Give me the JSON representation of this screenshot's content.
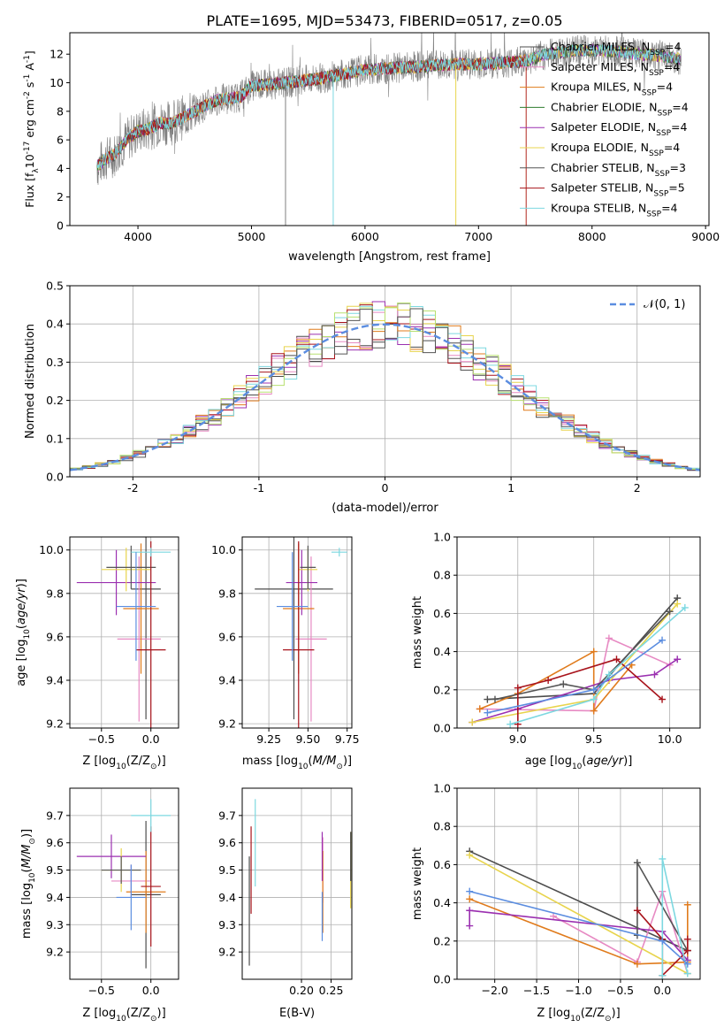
{
  "figure": {
    "title": "PLATE=1695, MJD=53473, FIBERID=0517, z=0.05",
    "colors": {
      "Chabrier MILES": "#4c4c4c",
      "Salpeter MILES": "#e78ac3",
      "Kroupa MILES": "#e07b1c",
      "Chabrier ELODIE": "#2e7d2e",
      "Salpeter ELODIE": "#9b30b0",
      "Kroupa ELODIE": "#e8d44d",
      "Chabrier STELIB": "#555555",
      "Salpeter STELIB": "#a8141c",
      "Kroupa STELIB": "#7dd8e0",
      "data": "#808080",
      "blue": "#5b8de0",
      "lime": "#b8e070",
      "gaussian": "#5b8de0"
    }
  },
  "chart_data": [
    {
      "id": "spectrum",
      "type": "line",
      "title": "PLATE=1695, MJD=53473, FIBERID=0517, z=0.05",
      "xlabel": "wavelength [Angstrom, rest frame]",
      "ylabel_main": "Flux [f",
      "ylabel_tail": "10",
      "ylabel_exp": "-17",
      "ylabel_unit": " erg cm",
      "ylabel_exp2": "-2",
      "ylabel_s": " s",
      "ylabel_exp3": "-1",
      "ylabel_A": " A",
      "ylabel_exp4": "-1",
      "ylabel_end": "]",
      "xlim": [
        3400,
        9030
      ],
      "ylim": [
        0,
        13.5
      ],
      "xticks": [
        4000,
        5000,
        6000,
        7000,
        8000,
        9000
      ],
      "yticks": [
        0,
        2,
        4,
        6,
        8,
        10,
        12
      ],
      "legend_position": "top-right",
      "legend": [
        {
          "label": "Chabrier MILES, N",
          "sub": "SSP",
          "tail": "=4",
          "color": "#4c4c4c"
        },
        {
          "label": "Salpeter MILES, N",
          "sub": "SSP",
          "tail": "=4",
          "color": "#e78ac3"
        },
        {
          "label": "Kroupa MILES, N",
          "sub": "SSP",
          "tail": "=4",
          "color": "#e07b1c"
        },
        {
          "label": "Chabrier ELODIE, N",
          "sub": "SSP",
          "tail": "=4",
          "color": "#2e7d2e"
        },
        {
          "label": "Salpeter ELODIE, N",
          "sub": "SSP",
          "tail": "=4",
          "color": "#9b30b0"
        },
        {
          "label": "Kroupa ELODIE, N",
          "sub": "SSP",
          "tail": "=4",
          "color": "#e8d44d"
        },
        {
          "label": "Chabrier STELIB, N",
          "sub": "SSP",
          "tail": "=3",
          "color": "#555555"
        },
        {
          "label": "Salpeter STELIB, N",
          "sub": "SSP",
          "tail": "=5",
          "color": "#a8141c"
        },
        {
          "label": "Kroupa STELIB, N",
          "sub": "SSP",
          "tail": "=4",
          "color": "#7dd8e0"
        }
      ],
      "continuum": {
        "x": [
          3650,
          3700,
          3800,
          3900,
          4000,
          4100,
          4200,
          4300,
          4500,
          4700,
          4900,
          5000,
          5200,
          5400,
          5600,
          5800,
          6000,
          6200,
          6400,
          6600,
          6800,
          7000,
          7200,
          7400,
          7600,
          7800,
          8000,
          8200,
          8400,
          8600,
          8800
        ],
        "y": [
          4.2,
          4.6,
          5.0,
          6.0,
          6.6,
          6.8,
          7.2,
          7.2,
          8.0,
          8.8,
          9.0,
          9.8,
          9.9,
          10.1,
          10.3,
          10.6,
          10.9,
          11.0,
          11.1,
          11.2,
          11.3,
          11.3,
          11.4,
          11.5,
          12.0,
          12.2,
          12.3,
          12.2,
          12.0,
          11.9,
          11.6
        ]
      }
    },
    {
      "id": "residuals",
      "type": "histogram",
      "xlabel": "(data-model)/error",
      "ylabel": "Normed distribution",
      "xlim": [
        -2.5,
        2.5
      ],
      "ylim": [
        0,
        0.5
      ],
      "xticks": [
        -2,
        -1,
        0,
        1,
        2
      ],
      "yticks": [
        0.0,
        0.1,
        0.2,
        0.3,
        0.4,
        0.5
      ],
      "grid": true,
      "legend_position": "top-right",
      "legend_label": "(0, 1)",
      "gaussian": {
        "mean": 0,
        "sigma": 1
      }
    },
    {
      "id": "age-vs-Z",
      "type": "scatter",
      "xlabel_main": "Z [log",
      "xlabel_sub": "10",
      "xlabel_tail": "(Z/Z",
      "xlabel_sun": "⊙",
      "xlabel_end": ")]",
      "ylabel_main": "age  [log",
      "ylabel_sub": "10",
      "ylabel_tail": "(age/yr)]",
      "xlim": [
        -0.82,
        0.28
      ],
      "ylim": [
        9.18,
        10.06
      ],
      "xticks": [
        -0.5,
        0.0
      ],
      "xticklabels": [
        "−0.5",
        "0.0"
      ],
      "yticks": [
        9.2,
        9.4,
        9.6,
        9.8,
        10.0
      ],
      "grid": true,
      "points": [
        {
          "series": "Chabrier MILES",
          "x": -0.05,
          "y": 9.82,
          "xerr": 0.15,
          "yerr": 0.6
        },
        {
          "series": "Salpeter MILES",
          "x": -0.12,
          "y": 9.59,
          "xerr": 0.22,
          "yerr": 0.38
        },
        {
          "series": "Kroupa MILES",
          "x": -0.1,
          "y": 9.73,
          "xerr": 0.18,
          "yerr": 0.3
        },
        {
          "series": "Salpeter ELODIE",
          "x": -0.35,
          "y": 9.85,
          "xerr": 0.4,
          "yerr": 0.15
        },
        {
          "series": "Kroupa ELODIE",
          "x": -0.25,
          "y": 9.91,
          "xerr": 0.25,
          "yerr": 0.1
        },
        {
          "series": "Chabrier STELIB",
          "x": -0.2,
          "y": 9.92,
          "xerr": 0.25,
          "yerr": 0.1
        },
        {
          "series": "Salpeter STELIB",
          "x": 0.0,
          "y": 9.54,
          "xerr": 0.15,
          "yerr": 0.5
        },
        {
          "series": "Kroupa STELIB",
          "x": 0.0,
          "y": 9.99,
          "xerr": 0.2,
          "yerr": 0.02
        },
        {
          "series": "blue",
          "x": -0.15,
          "y": 9.74,
          "xerr": 0.2,
          "yerr": 0.25
        }
      ]
    },
    {
      "id": "age-vs-mass",
      "type": "scatter",
      "xlabel_main": "mass [log",
      "xlabel_sub": "10",
      "xlabel_tail": "(M/M",
      "xlabel_sun": "⊙",
      "xlabel_end": ")]",
      "xlim": [
        9.08,
        9.78
      ],
      "ylim": [
        9.18,
        10.06
      ],
      "xticks": [
        9.25,
        9.5,
        9.75
      ],
      "xticklabels": [
        "9.25",
        "9.50",
        "9.75"
      ],
      "yticks": [
        9.2,
        9.4,
        9.6,
        9.8,
        10.0
      ],
      "grid": true,
      "points": [
        {
          "series": "Chabrier MILES",
          "x": 9.41,
          "y": 9.82,
          "xerr": 0.25,
          "yerr": 0.6
        },
        {
          "series": "Salpeter MILES",
          "x": 9.52,
          "y": 9.59,
          "xerr": 0.1,
          "yerr": 0.38
        },
        {
          "series": "Kroupa MILES",
          "x": 9.44,
          "y": 9.73,
          "xerr": 0.1,
          "yerr": 0.3
        },
        {
          "series": "Salpeter ELODIE",
          "x": 9.46,
          "y": 9.85,
          "xerr": 0.1,
          "yerr": 0.15
        },
        {
          "series": "Kroupa ELODIE",
          "x": 9.5,
          "y": 9.91,
          "xerr": 0.06,
          "yerr": 0.1
        },
        {
          "series": "Chabrier STELIB",
          "x": 9.5,
          "y": 9.92,
          "xerr": 0.05,
          "yerr": 0.1
        },
        {
          "series": "Salpeter STELIB",
          "x": 9.44,
          "y": 9.54,
          "xerr": 0.1,
          "yerr": 0.5
        },
        {
          "series": "Kroupa STELIB",
          "x": 9.7,
          "y": 9.99,
          "xerr": 0.05,
          "yerr": 0.02
        },
        {
          "series": "blue",
          "x": 9.4,
          "y": 9.74,
          "xerr": 0.1,
          "yerr": 0.25
        }
      ]
    },
    {
      "id": "massweight-vs-age",
      "type": "line",
      "xlabel_main": "age  [log",
      "xlabel_sub": "10",
      "xlabel_tail": "(age/yr)]",
      "ylabel": "mass weight",
      "xlim": [
        8.6,
        10.2
      ],
      "ylim": [
        0,
        1
      ],
      "xticks": [
        9.0,
        9.5,
        10.0
      ],
      "xticklabels": [
        "9.0",
        "9.5",
        "10.0"
      ],
      "yticks": [
        0.0,
        0.2,
        0.4,
        0.6,
        0.8,
        1.0
      ],
      "grid": true,
      "series": [
        {
          "name": "Chabrier MILES",
          "x": [
            8.8,
            9.5,
            10.05
          ],
          "y": [
            0.15,
            0.18,
            0.68
          ]
        },
        {
          "name": "Salpeter MILES",
          "x": [
            8.75,
            9.5,
            9.6,
            10.0
          ],
          "y": [
            0.1,
            0.09,
            0.47,
            0.33
          ]
        },
        {
          "name": "Kroupa MILES",
          "x": [
            8.75,
            9.0,
            9.5,
            9.5,
            9.75
          ],
          "y": [
            0.1,
            0.18,
            0.4,
            0.09,
            0.33
          ]
        },
        {
          "name": "Salpeter ELODIE",
          "x": [
            8.7,
            9.0,
            9.6,
            9.9,
            10.05
          ],
          "y": [
            0.03,
            0.1,
            0.25,
            0.28,
            0.36
          ]
        },
        {
          "name": "Kroupa ELODIE",
          "x": [
            8.7,
            9.5,
            10.05
          ],
          "y": [
            0.03,
            0.15,
            0.65
          ]
        },
        {
          "name": "Chabrier STELIB",
          "x": [
            8.85,
            9.3,
            9.5,
            10.0
          ],
          "y": [
            0.15,
            0.23,
            0.2,
            0.61
          ]
        },
        {
          "name": "Salpeter STELIB",
          "x": [
            9.0,
            9.0,
            9.2,
            9.65,
            9.95
          ],
          "y": [
            0.02,
            0.21,
            0.25,
            0.36,
            0.15
          ]
        },
        {
          "name": "Kroupa STELIB",
          "x": [
            8.95,
            9.5,
            9.6,
            10.1
          ],
          "y": [
            0.02,
            0.15,
            0.28,
            0.63
          ]
        },
        {
          "name": "blue",
          "x": [
            8.8,
            9.5,
            9.95
          ],
          "y": [
            0.08,
            0.2,
            0.46
          ]
        }
      ]
    },
    {
      "id": "mass-vs-Z",
      "type": "scatter",
      "xlabel_main": "Z [log",
      "xlabel_sub": "10",
      "xlabel_tail": "(Z/Z",
      "xlabel_sun": "⊙",
      "xlabel_end": ")]",
      "ylabel_main": "mass [log",
      "ylabel_sub": "10",
      "ylabel_tail": "(M/M",
      "ylabel_sun": "⊙",
      "ylabel_end": ")]",
      "xlim": [
        -0.82,
        0.28
      ],
      "ylim": [
        9.1,
        9.8
      ],
      "xticks": [
        -0.5,
        0.0
      ],
      "xticklabels": [
        "−0.5",
        "0.0"
      ],
      "yticks": [
        9.2,
        9.3,
        9.4,
        9.5,
        9.6,
        9.7
      ],
      "grid": true,
      "points": [
        {
          "series": "Chabrier MILES",
          "x": -0.05,
          "y": 9.41,
          "xerr": 0.15,
          "yerr": 0.27
        },
        {
          "series": "Salpeter MILES",
          "x": -0.2,
          "y": 9.46,
          "xerr": 0.2,
          "yerr": 0.06
        },
        {
          "series": "Kroupa MILES",
          "x": -0.05,
          "y": 9.42,
          "xerr": 0.2,
          "yerr": 0.15
        },
        {
          "series": "Salpeter ELODIE",
          "x": -0.4,
          "y": 9.55,
          "xerr": 0.35,
          "yerr": 0.08
        },
        {
          "series": "Kroupa ELODIE",
          "x": -0.3,
          "y": 9.5,
          "xerr": 0.2,
          "yerr": 0.08
        },
        {
          "series": "Chabrier STELIB",
          "x": -0.3,
          "y": 9.5,
          "xerr": 0.2,
          "yerr": 0.05
        },
        {
          "series": "Salpeter STELIB",
          "x": 0.0,
          "y": 9.44,
          "xerr": 0.1,
          "yerr": 0.22
        },
        {
          "series": "Kroupa STELIB",
          "x": 0.0,
          "y": 9.7,
          "xerr": 0.2,
          "yerr": 0.06
        },
        {
          "series": "blue",
          "x": -0.2,
          "y": 9.4,
          "xerr": 0.15,
          "yerr": 0.12
        }
      ]
    },
    {
      "id": "mass-vs-EBV",
      "type": "scatter",
      "xlabel": "E(B-V)",
      "xlim": [
        0.1,
        0.285
      ],
      "ylim": [
        9.1,
        9.8
      ],
      "xticks": [
        0.2,
        0.25
      ],
      "xticklabels": [
        "0.20",
        "0.25"
      ],
      "yticks": [
        9.2,
        9.3,
        9.4,
        9.5,
        9.6,
        9.7
      ],
      "grid": true,
      "points": [
        {
          "series": "Chabrier MILES",
          "x": 0.112,
          "y": 9.35,
          "yerr": 0.2
        },
        {
          "series": "Salpeter MILES",
          "x": 0.236,
          "y": 9.5,
          "yerr": 0.12
        },
        {
          "series": "Kroupa MILES",
          "x": 0.236,
          "y": 9.42,
          "yerr": 0.15
        },
        {
          "series": "Salpeter ELODIE",
          "x": 0.235,
          "y": 9.55,
          "yerr": 0.09
        },
        {
          "series": "Kroupa ELODIE",
          "x": 0.283,
          "y": 9.5,
          "yerr": 0.14
        },
        {
          "series": "Chabrier STELIB",
          "x": 0.283,
          "y": 9.55,
          "yerr": 0.09
        },
        {
          "series": "Salpeter STELIB",
          "x": 0.115,
          "y": 9.5,
          "yerr": 0.16
        },
        {
          "series": "Kroupa STELIB",
          "x": 0.122,
          "y": 9.6,
          "yerr": 0.16
        },
        {
          "series": "blue",
          "x": 0.235,
          "y": 9.33,
          "yerr": 0.09
        }
      ]
    },
    {
      "id": "massweight-vs-Z",
      "type": "line",
      "xlabel_main": "Z [log",
      "xlabel_sub": "10",
      "xlabel_tail": "(Z/Z",
      "xlabel_sun": "⊙",
      "xlabel_end": ")]",
      "ylabel": "mass weight",
      "xlim": [
        -2.45,
        0.45
      ],
      "ylim": [
        0,
        1
      ],
      "xticks": [
        -2.0,
        -1.5,
        -1.0,
        -0.5,
        0.0
      ],
      "xticklabels": [
        "−2.0",
        "−1.5",
        "−1.0",
        "−0.5",
        "0.0"
      ],
      "yticks": [
        0.0,
        0.2,
        0.4,
        0.6,
        0.8,
        1.0
      ],
      "grid": true,
      "series": [
        {
          "name": "Chabrier MILES",
          "x": [
            -2.3,
            0.3
          ],
          "y": [
            0.67,
            0.15
          ]
        },
        {
          "name": "Salpeter MILES",
          "x": [
            -1.3,
            -0.3,
            0.0,
            0.3
          ],
          "y": [
            0.33,
            0.09,
            0.46,
            0.03
          ]
        },
        {
          "name": "Kroupa MILES",
          "x": [
            -2.3,
            -0.3,
            0.3,
            0.3
          ],
          "y": [
            0.42,
            0.08,
            0.09,
            0.39
          ]
        },
        {
          "name": "Salpeter ELODIE",
          "x": [
            -2.3,
            -2.3,
            0.0,
            0.3
          ],
          "y": [
            0.28,
            0.36,
            0.25,
            0.1
          ]
        },
        {
          "name": "Kroupa ELODIE",
          "x": [
            -2.3,
            0.3
          ],
          "y": [
            0.65,
            0.03
          ]
        },
        {
          "name": "Chabrier STELIB",
          "x": [
            -0.3,
            -0.3,
            0.3
          ],
          "y": [
            0.23,
            0.61,
            0.15
          ]
        },
        {
          "name": "Salpeter STELIB",
          "x": [
            -0.3,
            0.0,
            0.0,
            0.3,
            0.3
          ],
          "y": [
            0.36,
            0.21,
            0.02,
            0.15,
            0.21
          ]
        },
        {
          "name": "Kroupa STELIB",
          "x": [
            0.0,
            0.0,
            0.3
          ],
          "y": [
            0.02,
            0.63,
            0.03
          ]
        },
        {
          "name": "blue",
          "x": [
            -2.3,
            0.0,
            0.3
          ],
          "y": [
            0.46,
            0.2,
            0.08
          ]
        }
      ]
    }
  ]
}
